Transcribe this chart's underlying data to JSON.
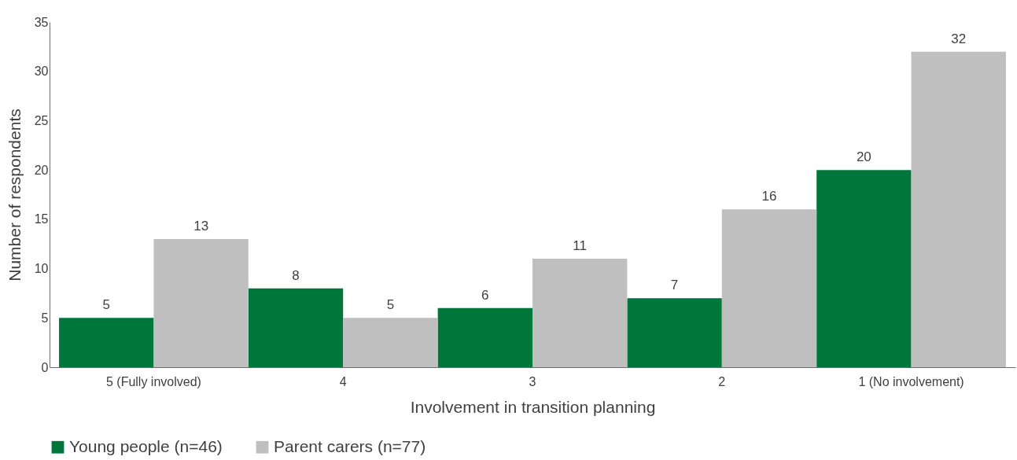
{
  "chart_data": {
    "type": "bar",
    "xlabel": "Involvement in transition planning",
    "ylabel": "Number of respondents",
    "categories": [
      "5 (Fully involved)",
      "4",
      "3",
      "2",
      "1 (No involvement)"
    ],
    "series": [
      {
        "name": "Young people (n=46)",
        "color": "#00773a",
        "values": [
          5,
          8,
          6,
          7,
          20
        ]
      },
      {
        "name": "Parent carers (n=77)",
        "color": "#bfbfbf",
        "values": [
          13,
          5,
          11,
          16,
          32
        ]
      }
    ],
    "ylim": [
      0,
      35
    ],
    "yticks": [
      0,
      5,
      10,
      15,
      20,
      25,
      30,
      35
    ],
    "grid": false,
    "legend": "bottom",
    "data_labels": true
  }
}
